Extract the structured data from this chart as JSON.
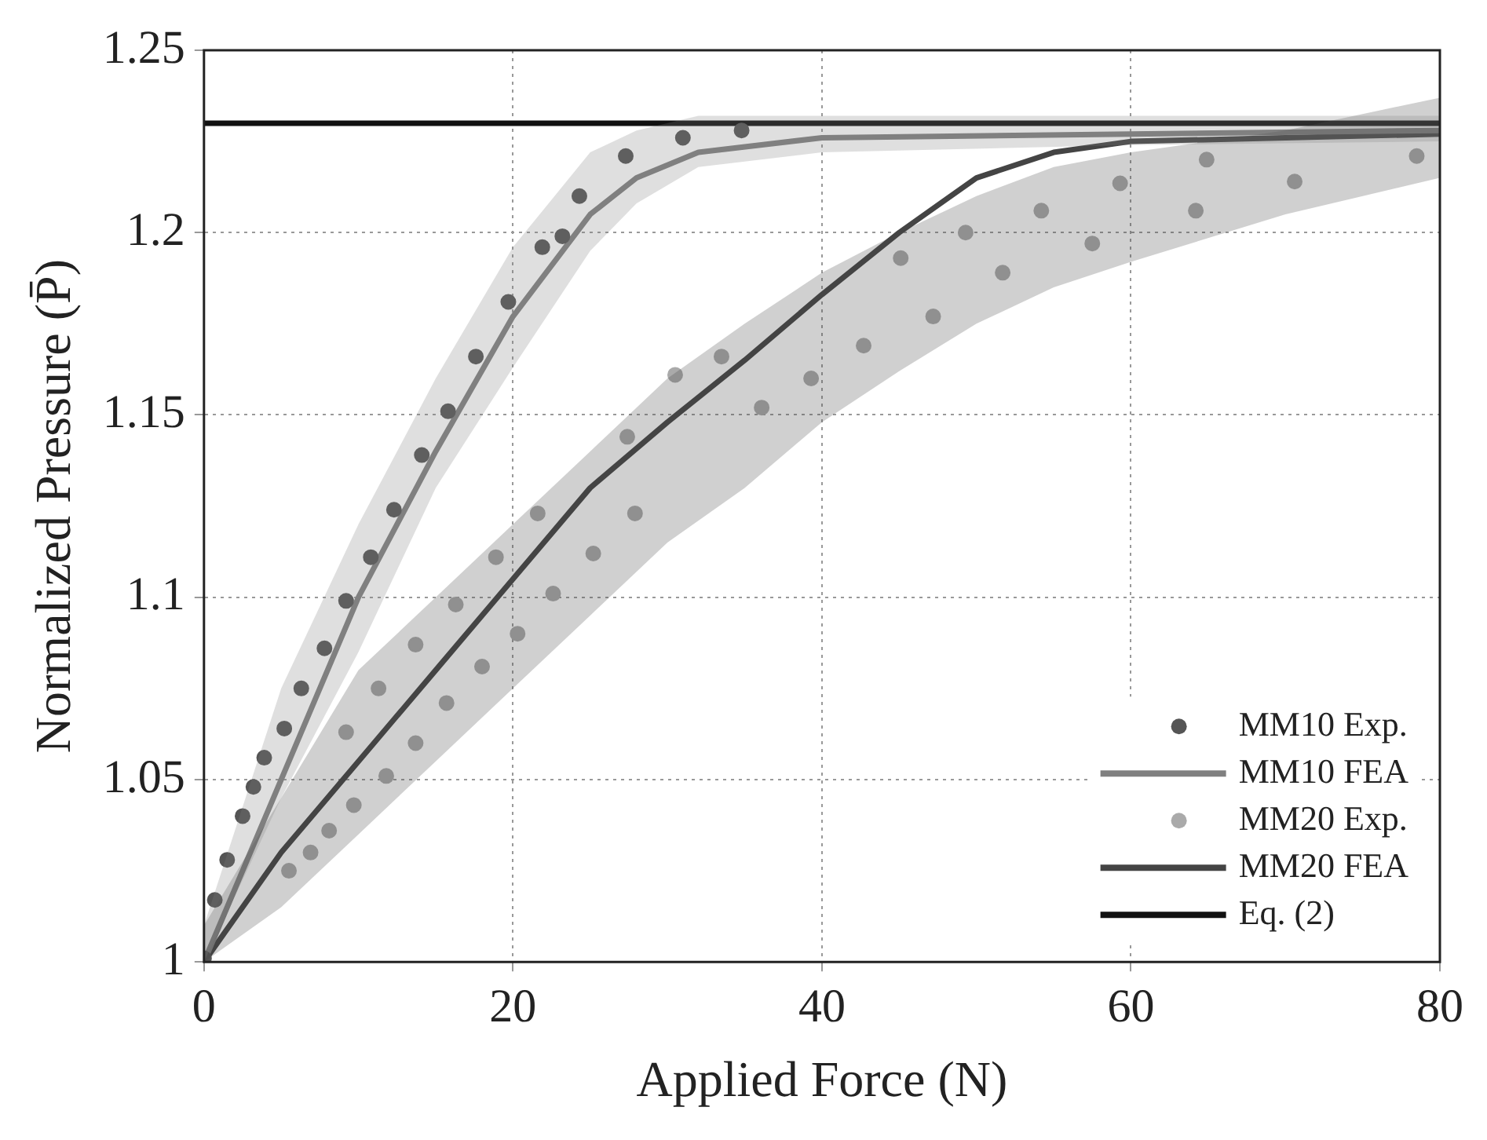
{
  "chart_data": {
    "type": "line",
    "xlabel": "Applied Force (N)",
    "ylabel": "Normalized Pressure (P̄)",
    "xlim": [
      0,
      80
    ],
    "xticks": [
      0,
      20,
      40,
      60,
      80
    ],
    "ylim": [
      1,
      1.25
    ],
    "yticks": [
      1,
      1.05,
      1.1,
      1.15,
      1.2,
      1.25
    ],
    "grid": true,
    "legend": "bottom right",
    "line_style": "solid",
    "series": [
      {
        "name": "MM10 Exp.",
        "type": "scatter",
        "marker": "circle",
        "color": "#555555",
        "x": [
          0,
          0.7,
          1.5,
          2.5,
          3.2,
          3.9,
          5.2,
          6.3,
          7.8,
          9.2,
          10.8,
          12.3,
          14.1,
          15.8,
          17.6,
          19.7,
          21.9,
          23.2,
          24.3,
          27.3,
          31,
          34.8
        ],
        "values": [
          1.001,
          1.017,
          1.028,
          1.04,
          1.048,
          1.056,
          1.064,
          1.075,
          1.086,
          1.099,
          1.111,
          1.124,
          1.139,
          1.151,
          1.166,
          1.181,
          1.196,
          1.199,
          1.21,
          1.221,
          1.226,
          1.228
        ]
      },
      {
        "name": "MM10 FEA",
        "type": "line",
        "color": "#808080",
        "x": [
          0,
          5,
          10,
          15,
          20,
          25,
          28,
          32,
          40,
          60,
          80
        ],
        "values": [
          1,
          1.05,
          1.1,
          1.14,
          1.177,
          1.205,
          1.215,
          1.222,
          1.226,
          1.227,
          1.228
        ],
        "lower": [
          1,
          1.045,
          1.085,
          1.13,
          1.163,
          1.195,
          1.208,
          1.218,
          1.222,
          1.224,
          1.225
        ],
        "upper": [
          1.01,
          1.075,
          1.12,
          1.16,
          1.196,
          1.222,
          1.228,
          1.232,
          1.232,
          1.232,
          1.232
        ]
      },
      {
        "name": "MM20 Exp.",
        "type": "scatter",
        "marker": "circle",
        "color": "#aaaaaa",
        "x": [
          5.5,
          6.9,
          8.1,
          9.2,
          9.7,
          11.3,
          11.8,
          13.7,
          13.7,
          15.7,
          16.3,
          18,
          18.9,
          20.3,
          21.6,
          22.6,
          25.2,
          27.4,
          27.9,
          30.5,
          33.5,
          36.1,
          39.3,
          42.7,
          45.1,
          47.2,
          49.3,
          51.7,
          54.2,
          57.5,
          59.3,
          64.2,
          64.9,
          70.6,
          78.5
        ],
        "values": [
          1.025,
          1.03,
          1.036,
          1.063,
          1.043,
          1.075,
          1.051,
          1.087,
          1.06,
          1.071,
          1.098,
          1.081,
          1.111,
          1.09,
          1.123,
          1.101,
          1.112,
          1.144,
          1.123,
          1.161,
          1.166,
          1.152,
          1.16,
          1.169,
          1.193,
          1.177,
          1.2,
          1.189,
          1.206,
          1.197,
          1.2135,
          1.206,
          1.22,
          1.214,
          1.221
        ]
      },
      {
        "name": "MM20 FEA",
        "type": "line",
        "color": "#444444",
        "x": [
          0,
          5,
          10,
          15,
          20,
          25,
          30,
          35,
          40,
          45,
          50,
          55,
          60,
          70,
          80
        ],
        "values": [
          1,
          1.03,
          1.055,
          1.08,
          1.105,
          1.13,
          1.148,
          1.165,
          1.183,
          1.2,
          1.215,
          1.222,
          1.225,
          1.226,
          1.227
        ],
        "lower": [
          1,
          1.015,
          1.035,
          1.055,
          1.075,
          1.095,
          1.115,
          1.13,
          1.148,
          1.162,
          1.175,
          1.185,
          1.192,
          1.205,
          1.215
        ],
        "upper": [
          1.01,
          1.045,
          1.08,
          1.1,
          1.12,
          1.14,
          1.16,
          1.175,
          1.189,
          1.2,
          1.21,
          1.218,
          1.222,
          1.228,
          1.237
        ]
      },
      {
        "name": "Eq. (2)",
        "type": "line",
        "color": "#111111",
        "x": [
          0,
          80
        ],
        "values": [
          1.23,
          1.23
        ]
      }
    ]
  }
}
